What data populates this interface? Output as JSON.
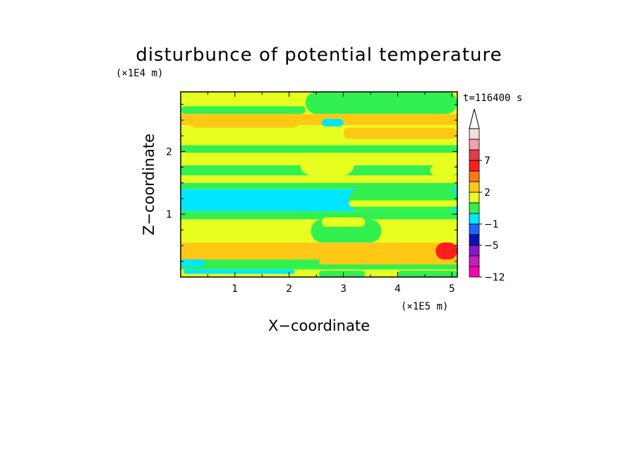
{
  "chart_data": {
    "type": "heatmap",
    "title": "disturbunce of potential temperature",
    "xlabel": "X−coordinate",
    "ylabel": "Z−coordinate",
    "x_unit": "(×1E5 m)",
    "y_unit": "(×1E4 m)",
    "time_label": "t=116400 s",
    "xlim": [
      0,
      5.1
    ],
    "ylim": [
      0,
      2.95
    ],
    "x_ticks": [
      {
        "value": 1,
        "label": "1"
      },
      {
        "value": 2,
        "label": "2"
      },
      {
        "value": 3,
        "label": "3"
      },
      {
        "value": 4,
        "label": "4"
      },
      {
        "value": 5,
        "label": "5"
      }
    ],
    "y_ticks": [
      {
        "value": 1,
        "label": "1"
      },
      {
        "value": 2,
        "label": "2"
      }
    ],
    "colorbar": {
      "levels": [
        -12,
        -9,
        -7,
        -5,
        -3,
        -1,
        0,
        1,
        2,
        3,
        5,
        7,
        9
      ],
      "colors": [
        "#ff00b4",
        "#c81ebe",
        "#8c14c8",
        "#0a14b4",
        "#1e64ff",
        "#00e6ff",
        "#32f050",
        "#e6ff1e",
        "#ffc814",
        "#ff7814",
        "#ff1e1e",
        "#e63c46",
        "#f5a0aa",
        "#f5dcdc"
      ],
      "labels": [
        {
          "level": -12,
          "text": "−12"
        },
        {
          "level": -5,
          "text": "−5"
        },
        {
          "level": -1,
          "text": "−1"
        },
        {
          "level": 2,
          "text": "2"
        },
        {
          "level": 7,
          "text": "7"
        }
      ],
      "extend": "max"
    },
    "bands": [
      {
        "z": [
          0.0,
          0.04
        ],
        "value": 0.5
      },
      {
        "z": [
          0.04,
          0.12
        ],
        "value": 0.5
      },
      {
        "z": [
          0.12,
          0.28
        ],
        "value": -0.5
      },
      {
        "z": [
          0.28,
          0.55
        ],
        "value": 1.5
      },
      {
        "z": [
          0.55,
          0.92
        ],
        "value": 0.5
      },
      {
        "z": [
          0.92,
          1.05
        ],
        "value": -0.5
      },
      {
        "z": [
          1.05,
          1.4
        ],
        "value": -1.5
      },
      {
        "z": [
          1.4,
          1.5
        ],
        "value": -0.5
      },
      {
        "z": [
          1.5,
          1.62
        ],
        "value": 0.5
      },
      {
        "z": [
          1.62,
          1.78
        ],
        "value": -0.5
      },
      {
        "z": [
          1.78,
          1.98
        ],
        "value": 0.5
      },
      {
        "z": [
          1.98,
          2.1
        ],
        "value": -0.5
      },
      {
        "z": [
          2.1,
          2.42
        ],
        "value": 0.5
      },
      {
        "z": [
          2.42,
          2.6
        ],
        "value": 1.5
      },
      {
        "z": [
          2.6,
          2.95
        ],
        "value": 0.5
      }
    ],
    "patches": [
      {
        "x": [
          0.05,
          2.55
        ],
        "z": [
          0.0,
          0.1
        ],
        "value": 0.5
      },
      {
        "x": [
          0.0,
          0.45
        ],
        "z": [
          0.16,
          0.28
        ],
        "value": -3
      },
      {
        "x": [
          0.05,
          2.1
        ],
        "z": [
          0.05,
          0.12
        ],
        "value": -1.5
      },
      {
        "x": [
          0.55,
          2.1
        ],
        "z": [
          0.06,
          0.11
        ],
        "value": -3
      },
      {
        "x": [
          2.55,
          5.1
        ],
        "z": [
          0.2,
          0.28
        ],
        "value": 1.5
      },
      {
        "x": [
          2.55,
          3.4
        ],
        "z": [
          0.0,
          0.1
        ],
        "value": -0.5
      },
      {
        "x": [
          4.0,
          5.1
        ],
        "z": [
          0.0,
          0.1
        ],
        "value": -0.5
      },
      {
        "x": [
          4.7,
          5.1
        ],
        "z": [
          0.28,
          0.55
        ],
        "value": 3
      },
      {
        "x": [
          2.4,
          3.7
        ],
        "z": [
          0.55,
          0.92
        ],
        "value": -0.5
      },
      {
        "x": [
          2.6,
          3.4
        ],
        "z": [
          0.8,
          0.95
        ],
        "value": 0.5
      },
      {
        "x": [
          0.2,
          0.6
        ],
        "z": [
          1.24,
          1.31
        ],
        "value": -3
      },
      {
        "x": [
          2.3,
          5.1
        ],
        "z": [
          1.24,
          1.32
        ],
        "value": -3
      },
      {
        "x": [
          3.1,
          5.1
        ],
        "z": [
          1.05,
          1.4
        ],
        "value": -0.5
      },
      {
        "x": [
          3.1,
          5.1
        ],
        "z": [
          1.12,
          1.22
        ],
        "value": 0.5
      },
      {
        "x": [
          0.15,
          2.2
        ],
        "z": [
          2.38,
          2.6
        ],
        "value": 1.5
      },
      {
        "x": [
          0.0,
          2.3
        ],
        "z": [
          2.6,
          2.72
        ],
        "value": -0.5
      },
      {
        "x": [
          2.3,
          5.1
        ],
        "z": [
          2.6,
          2.95
        ],
        "value": -0.5
      },
      {
        "x": [
          2.6,
          3.0
        ],
        "z": [
          2.4,
          2.52
        ],
        "value": -1.5
      },
      {
        "x": [
          3.0,
          5.1
        ],
        "z": [
          2.2,
          2.38
        ],
        "value": 1.5
      },
      {
        "x": [
          2.2,
          3.2
        ],
        "z": [
          1.62,
          1.98
        ],
        "value": 0.5
      },
      {
        "x": [
          4.6,
          5.1
        ],
        "z": [
          1.62,
          1.78
        ],
        "value": 0.5
      }
    ]
  }
}
